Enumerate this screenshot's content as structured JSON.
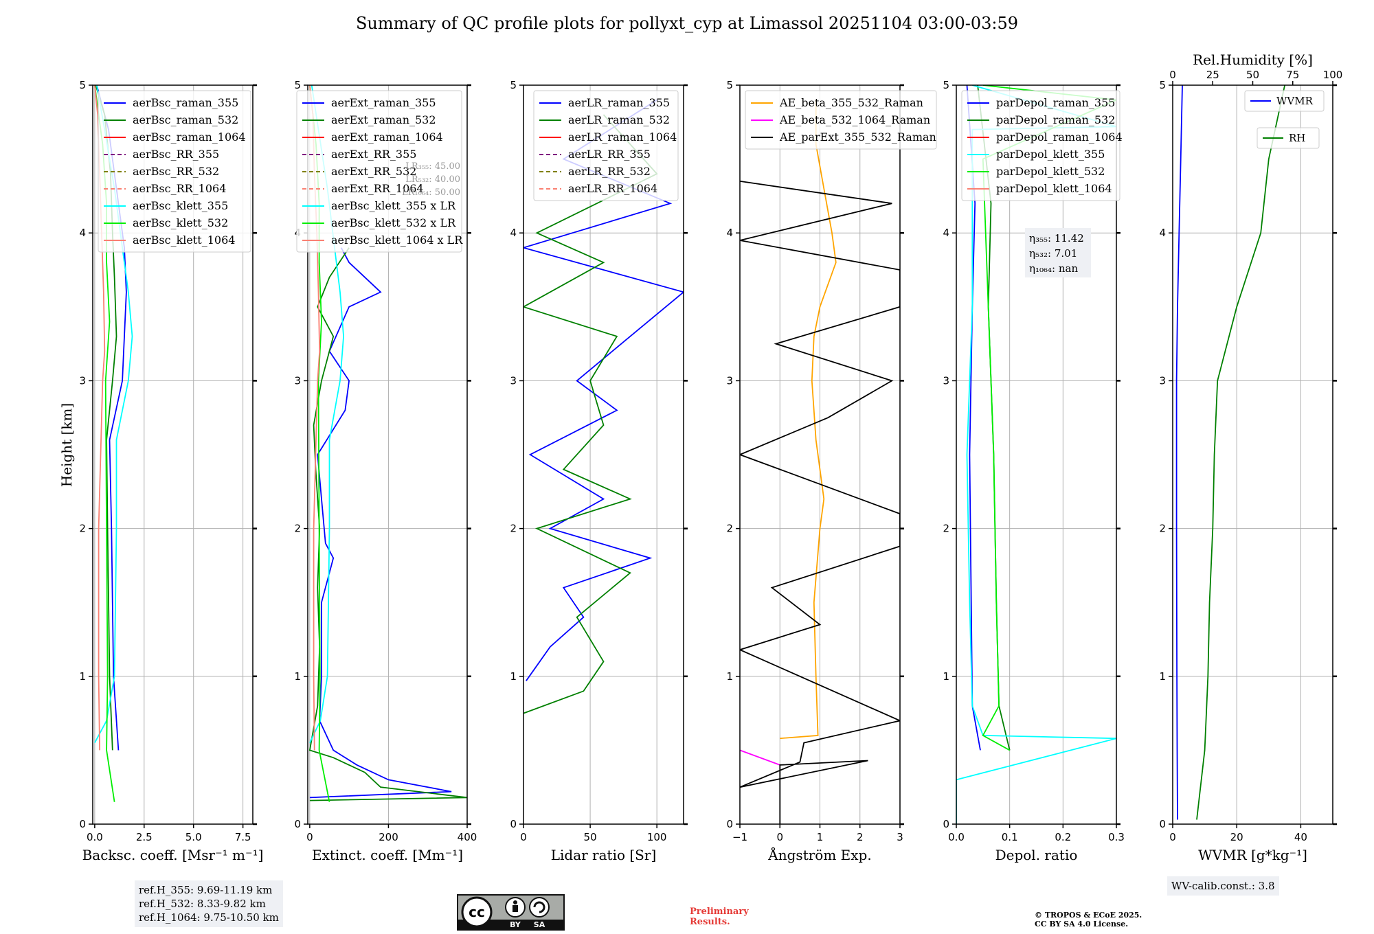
{
  "title": "Summary of QC profile plots for pollyxt_cyp at Limassol 20251104 03:00-03:59",
  "ylabel": "Height [km]",
  "ref_heights": [
    "ref.H_355: 9.69-11.19 km",
    "ref.H_532: 8.33-9.82 km",
    "ref.H_1064: 9.75-10.50 km"
  ],
  "wv_calib": "WV-calib.const.: 3.8",
  "preliminary": [
    "Preliminary",
    "Results."
  ],
  "copyright": [
    "© TROPOS & ECoE 2025.",
    "CC BY SA 4.0 License."
  ],
  "cc_badge": {
    "cc": "cc",
    "by": "BY",
    "sa": "SA"
  },
  "colors": {
    "blue": "#0000ff",
    "green": "#008000",
    "red": "#ff0000",
    "purple": "#800080",
    "olive": "#808000",
    "salmon": "#fa8072",
    "cyan": "#00ffff",
    "lime": "#00ee00",
    "orange": "#ffa500",
    "magenta": "#ff00ff",
    "black": "#000000"
  },
  "chart_data": [
    {
      "type": "line",
      "id": "backscatter",
      "xlabel": "Backsc. coeff. [Msr⁻¹ m⁻¹]",
      "xlim": [
        -0.1,
        8
      ],
      "xticks": [
        0,
        2.5,
        5,
        7.5
      ],
      "xticklabels": [
        "0.0",
        "2.5",
        "5.0",
        "7.5"
      ],
      "ylim": [
        0,
        5
      ],
      "yticks": [
        0,
        1,
        2,
        3,
        4,
        5
      ],
      "legend": "top-right",
      "series": [
        {
          "name": "aerBsc_raman_355",
          "color": "blue",
          "dash": "solid",
          "y": [
            0.5,
            1,
            2,
            2.6,
            3,
            3.3,
            3.6,
            3.9,
            4.3,
            4.7,
            5
          ],
          "x": [
            1.2,
            0.95,
            0.85,
            0.75,
            1.4,
            1.5,
            1.6,
            1.5,
            1.1,
            0.7,
            0.1
          ]
        },
        {
          "name": "aerBsc_raman_532",
          "color": "green",
          "dash": "solid",
          "y": [
            0.5,
            1,
            2,
            2.6,
            3,
            3.3,
            3.7,
            4,
            4.4,
            4.8,
            5
          ],
          "x": [
            0.9,
            0.75,
            0.65,
            0.6,
            0.9,
            1.1,
            1.0,
            0.9,
            0.8,
            0.5,
            0.05
          ]
        },
        {
          "name": "aerBsc_raman_1064",
          "color": "red",
          "dash": "solid",
          "y": [],
          "x": []
        },
        {
          "name": "aerBsc_RR_355",
          "color": "purple",
          "dash": "dashed",
          "y": [],
          "x": []
        },
        {
          "name": "aerBsc_RR_532",
          "color": "olive",
          "dash": "dashed",
          "y": [],
          "x": []
        },
        {
          "name": "aerBsc_RR_1064",
          "color": "salmon",
          "dash": "dashed",
          "y": [],
          "x": []
        },
        {
          "name": "aerBsc_klett_355",
          "color": "cyan",
          "dash": "solid",
          "y": [
            0.55,
            0.7,
            1,
            2,
            2.6,
            3,
            3.3,
            3.6,
            3.9,
            4.3,
            4.7,
            5
          ],
          "x": [
            0.0,
            0.6,
            1.0,
            1.1,
            1.1,
            1.7,
            1.9,
            1.7,
            1.4,
            1.0,
            0.5,
            0.1
          ]
        },
        {
          "name": "aerBsc_klett_532",
          "color": "lime",
          "dash": "solid",
          "y": [
            0.15,
            0.5,
            1,
            2,
            3,
            3.4,
            3.8,
            4.2,
            4.6,
            5
          ],
          "x": [
            1.0,
            0.6,
            0.65,
            0.6,
            0.55,
            0.75,
            0.6,
            0.6,
            0.4,
            0.0
          ]
        },
        {
          "name": "aerBsc_klett_1064",
          "color": "salmon",
          "dash": "solid",
          "y": [
            0.5,
            1,
            2,
            3,
            3.2,
            3.6,
            4,
            4.4,
            4.8,
            5
          ],
          "x": [
            0.25,
            0.2,
            0.2,
            0.4,
            0.5,
            0.45,
            0.35,
            0.25,
            0.15,
            0.0
          ]
        }
      ]
    },
    {
      "type": "line",
      "id": "extinction",
      "xlabel": "Extinct. coeff. [Mm⁻¹]",
      "xlim": [
        -5,
        400
      ],
      "xticks": [
        0,
        200,
        400
      ],
      "xticklabels": [
        "0",
        "200",
        "400"
      ],
      "ylim": [
        0,
        5
      ],
      "yticks": [
        0,
        1,
        2,
        3,
        4,
        5
      ],
      "legend": "top-right",
      "lr_text": [
        "LR₃₅₅: 45.00",
        "LR₅₃₂: 40.00",
        "LR₁₀₆₄: 50.00"
      ],
      "series": [
        {
          "name": "aerExt_raman_355",
          "color": "blue",
          "dash": "solid",
          "y": [
            0.18,
            0.22,
            0.3,
            0.4,
            0.5,
            0.7,
            1,
            1.5,
            1.8,
            1.9,
            2.2,
            2.5,
            2.8,
            3.0,
            3.2,
            3.5,
            3.6,
            3.8,
            3.9
          ],
          "x": [
            0,
            360,
            200,
            120,
            60,
            25,
            30,
            30,
            60,
            40,
            30,
            20,
            90,
            100,
            50,
            100,
            180,
            100,
            80
          ]
        },
        {
          "name": "aerExt_raman_532",
          "color": "green",
          "dash": "solid",
          "y": [
            0.16,
            0.18,
            0.25,
            0.35,
            0.45,
            0.5,
            0.8,
            1.2,
            1.6,
            2.0,
            2.4,
            2.7,
            3.0,
            3.3,
            3.5,
            3.7,
            3.9
          ],
          "x": [
            0,
            400,
            180,
            140,
            60,
            0,
            20,
            25,
            20,
            25,
            15,
            10,
            30,
            60,
            20,
            50,
            100
          ]
        },
        {
          "name": "aerExt_raman_1064",
          "color": "red",
          "dash": "solid",
          "y": [],
          "x": []
        },
        {
          "name": "aerExt_RR_355",
          "color": "purple",
          "dash": "dashed",
          "y": [],
          "x": []
        },
        {
          "name": "aerExt_RR_532",
          "color": "olive",
          "dash": "dashed",
          "y": [],
          "x": []
        },
        {
          "name": "aerExt_RR_1064",
          "color": "salmon",
          "dash": "dashed",
          "y": [],
          "x": []
        },
        {
          "name": "aerBsc_klett_355 x LR",
          "color": "cyan",
          "dash": "solid",
          "y": [
            0.55,
            0.7,
            1,
            2,
            2.6,
            3,
            3.3,
            3.6,
            3.9,
            4.3,
            4.7,
            5
          ],
          "x": [
            0,
            27,
            45,
            50,
            50,
            77,
            86,
            77,
            63,
            45,
            22,
            5
          ]
        },
        {
          "name": "aerBsc_klett_532 x LR",
          "color": "lime",
          "dash": "solid",
          "y": [
            0.15,
            0.5,
            1,
            2,
            3,
            3.4,
            3.8,
            4.2,
            4.6,
            5
          ],
          "x": [
            50,
            24,
            26,
            24,
            22,
            30,
            24,
            24,
            16,
            0
          ]
        },
        {
          "name": "aerBsc_klett_1064 x LR",
          "color": "salmon",
          "dash": "solid",
          "y": [
            0.5,
            1,
            2,
            3,
            3.2,
            3.6,
            4,
            4.4,
            4.8,
            5
          ],
          "x": [
            12,
            10,
            10,
            20,
            25,
            22,
            18,
            12,
            8,
            0
          ]
        }
      ]
    },
    {
      "type": "line",
      "id": "lidar_ratio",
      "xlabel": "Lidar ratio [Sr]",
      "xlim": [
        0,
        120
      ],
      "xticks": [
        0,
        50,
        100
      ],
      "xticklabels": [
        "0",
        "50",
        "100"
      ],
      "ylim": [
        0,
        5
      ],
      "yticks": [
        0,
        1,
        2,
        3,
        4,
        5
      ],
      "legend": "top-right",
      "series": [
        {
          "name": "aerLR_raman_355",
          "color": "blue",
          "dash": "solid",
          "y": [
            0.97,
            1.2,
            1.4,
            1.6,
            1.8,
            2.0,
            2.2,
            2.5,
            2.8,
            3.0,
            3.3,
            3.6,
            3.9,
            4.2,
            4.5,
            4.9
          ],
          "x": [
            2,
            20,
            45,
            30,
            95,
            20,
            60,
            5,
            70,
            40,
            80,
            120,
            0,
            110,
            30,
            100
          ]
        },
        {
          "name": "aerLR_raman_532",
          "color": "green",
          "dash": "solid",
          "y": [
            0.75,
            0.9,
            1.1,
            1.4,
            1.7,
            2.0,
            2.2,
            2.4,
            2.7,
            3.0,
            3.3,
            3.5,
            3.8,
            4.0,
            4.4,
            4.8
          ],
          "x": [
            0,
            45,
            60,
            40,
            80,
            10,
            80,
            30,
            60,
            50,
            70,
            0,
            60,
            10,
            100,
            60
          ]
        },
        {
          "name": "aerLR_raman_1064",
          "color": "red",
          "dash": "solid",
          "y": [],
          "x": []
        },
        {
          "name": "aerLR_RR_355",
          "color": "purple",
          "dash": "dashed",
          "y": [],
          "x": []
        },
        {
          "name": "aerLR_RR_532",
          "color": "olive",
          "dash": "dashed",
          "y": [],
          "x": []
        },
        {
          "name": "aerLR_RR_1064",
          "color": "salmon",
          "dash": "dashed",
          "y": [],
          "x": []
        }
      ]
    },
    {
      "type": "line",
      "id": "angstrom",
      "xlabel": "Ångström Exp.",
      "xlim": [
        -1,
        3
      ],
      "xticks": [
        -1,
        0,
        1,
        2,
        3
      ],
      "xticklabels": [
        "−1",
        "0",
        "1",
        "2",
        "3"
      ],
      "ylim": [
        0,
        5
      ],
      "yticks": [
        0,
        1,
        2,
        3,
        4,
        5
      ],
      "legend": "top-left",
      "series": [
        {
          "name": "AE_beta_355_532_Raman",
          "color": "orange",
          "dash": "solid",
          "y": [
            0.58,
            0.6,
            1.0,
            1.5,
            2.0,
            2.2,
            2.6,
            3.0,
            3.3,
            3.5,
            3.8,
            4.0,
            4.3,
            4.6,
            4.9
          ],
          "x": [
            0,
            0.95,
            0.9,
            0.85,
            1.0,
            1.1,
            0.9,
            0.8,
            0.85,
            1.0,
            1.4,
            1.3,
            1.1,
            0.9,
            0.9
          ]
        },
        {
          "name": "AE_beta_532_1064_Raman",
          "color": "magenta",
          "dash": "solid",
          "y": [
            0.4,
            0.5
          ],
          "x": [
            0,
            -1
          ]
        },
        {
          "name": "AE_parExt_355_532_Raman",
          "color": "black",
          "dash": "solid",
          "y": [
            0.0,
            0.4,
            0.43,
            0.25,
            0.42,
            0.55,
            0.7,
            1.18,
            1.35,
            1.6,
            1.88,
            2.1,
            2.4,
            2.5,
            2.75,
            3.0,
            3.25,
            3.5,
            3.75,
            3.95,
            4.2,
            4.35
          ],
          "x": [
            0,
            0,
            2.2,
            -1,
            0.5,
            0.6,
            3,
            -1,
            1,
            -0.2,
            3,
            3,
            0,
            -1,
            1.2,
            2.8,
            -0.1,
            3,
            3,
            -1,
            2.8,
            -1
          ]
        }
      ]
    },
    {
      "type": "line",
      "id": "depol",
      "xlabel": "Depol. ratio",
      "xlim": [
        0,
        0.3
      ],
      "xticks": [
        0,
        0.1,
        0.2,
        0.3
      ],
      "xticklabels": [
        "0.0",
        "0.1",
        "0.2",
        "0.3"
      ],
      "ylim": [
        0,
        5
      ],
      "yticks": [
        0,
        1,
        2,
        3,
        4,
        5
      ],
      "legend": "top-left",
      "eta_text": [
        "η₃₅₅: 11.42",
        "η₅₃₂: 7.01",
        "η₁₀₆₄: nan"
      ],
      "series": [
        {
          "name": "parDepol_raman_355",
          "color": "blue",
          "dash": "solid",
          "y": [
            0.5,
            0.8,
            1.5,
            2.5,
            3.5,
            4.2,
            5
          ],
          "x": [
            0.045,
            0.03,
            0.028,
            0.025,
            0.03,
            0.035,
            0.02
          ]
        },
        {
          "name": "parDepol_raman_532",
          "color": "green",
          "dash": "solid",
          "y": [
            0.5,
            0.8,
            1.5,
            2.5,
            3.5,
            4.2,
            5
          ],
          "x": [
            0.1,
            0.08,
            0.075,
            0.07,
            0.06,
            0.065,
            0.04
          ]
        },
        {
          "name": "parDepol_raman_1064",
          "color": "red",
          "dash": "solid",
          "y": [],
          "x": []
        },
        {
          "name": "parDepol_klett_355",
          "color": "cyan",
          "dash": "solid",
          "y": [
            0.0,
            0.3,
            0.58,
            0.6,
            0.8,
            1.5,
            2.5,
            3.5,
            4.7,
            4.72,
            5
          ],
          "x": [
            0.0,
            0.0,
            0.3,
            0.05,
            0.03,
            0.025,
            0.02,
            0.03,
            0.03,
            0.3,
            0.03
          ]
        },
        {
          "name": "parDepol_klett_532",
          "color": "lime",
          "dash": "solid",
          "y": [
            0.5,
            0.6,
            0.8,
            1.5,
            2.5,
            3.5,
            4.5,
            4.9,
            5
          ],
          "x": [
            0.1,
            0.05,
            0.08,
            0.075,
            0.07,
            0.06,
            0.05,
            0.3,
            0.05
          ]
        },
        {
          "name": "parDepol_klett_1064",
          "color": "salmon",
          "dash": "solid",
          "y": [],
          "x": []
        }
      ]
    },
    {
      "type": "line",
      "id": "wvmr",
      "xlabel": "WVMR [g*kg⁻¹]",
      "xlim": [
        0,
        50
      ],
      "xticks": [
        0,
        20,
        40
      ],
      "xticklabels": [
        "0",
        "20",
        "40"
      ],
      "ylim": [
        0,
        5
      ],
      "yticks": [
        0,
        1,
        2,
        3,
        4,
        5
      ],
      "top_xlabel": "Rel.Humidity [%]",
      "top_xlim": [
        0,
        100
      ],
      "top_xticks": [
        0,
        25,
        50,
        75,
        100
      ],
      "top_xticklabels": [
        "0",
        "25",
        "50",
        "75",
        "100"
      ],
      "legend": "top-right",
      "series": [
        {
          "name": "WVMR",
          "color": "blue",
          "dash": "solid",
          "axis": "bottom",
          "y": [
            0.03,
            0.5,
            1,
            2,
            3,
            3.5,
            4,
            4.5,
            5
          ],
          "x": [
            1.5,
            1.4,
            1.3,
            1.2,
            1.2,
            1.5,
            2,
            2.5,
            3
          ]
        },
        {
          "name": "RH",
          "color": "green",
          "dash": "solid",
          "axis": "top",
          "y": [
            0.03,
            0.5,
            1,
            1.5,
            2,
            2.5,
            3,
            3.5,
            4,
            4.5,
            5
          ],
          "x": [
            15,
            20,
            22,
            23,
            25,
            26,
            28,
            40,
            55,
            60,
            70
          ]
        }
      ]
    }
  ]
}
